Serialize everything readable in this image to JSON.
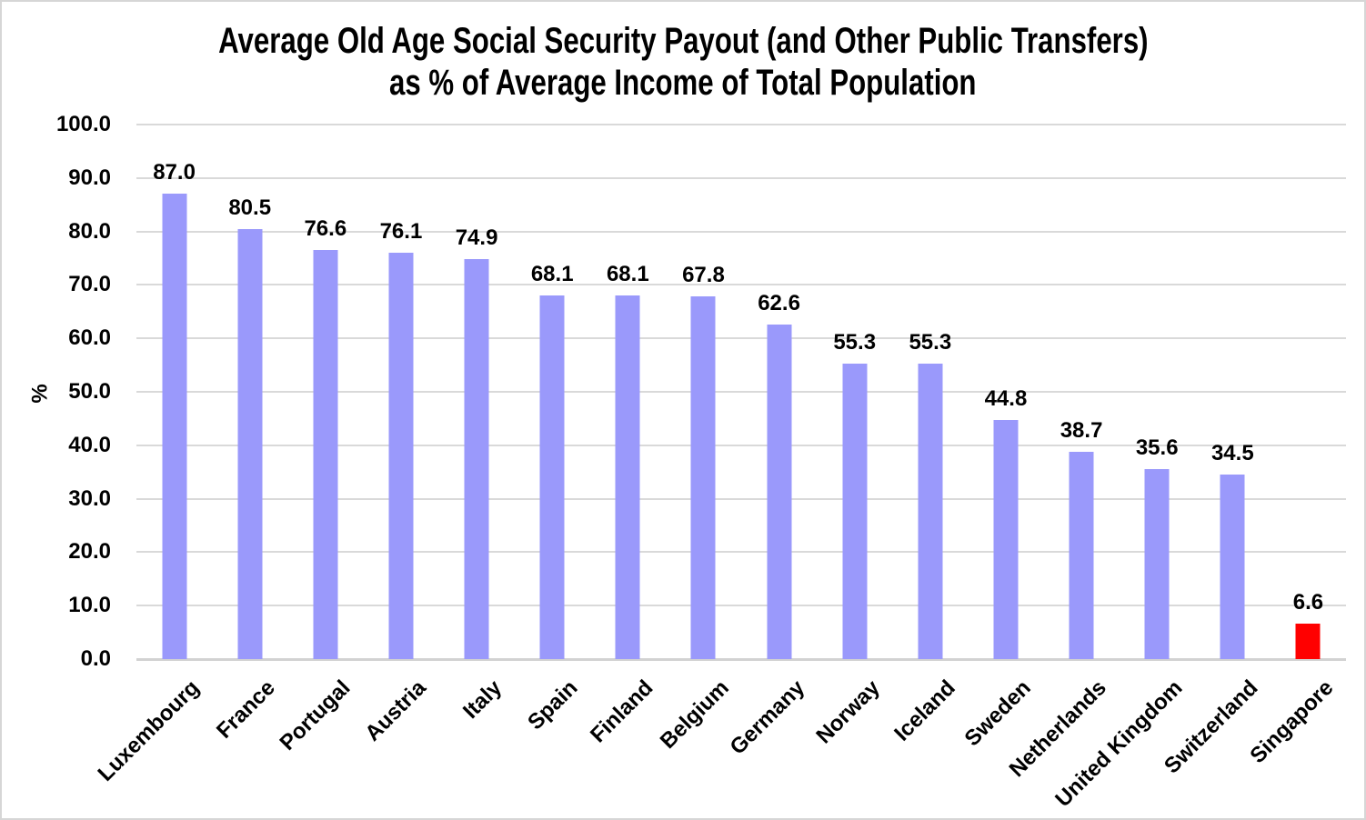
{
  "title": {
    "line1": "Average Old Age Social Security Payout (and Other Public Transfers)",
    "line2": "as % of Average Income of Total Population"
  },
  "y_axis": {
    "label": "%",
    "min": 0,
    "max": 100,
    "step": 10,
    "ticks": [
      "100.0",
      "90.0",
      "80.0",
      "70.0",
      "60.0",
      "50.0",
      "40.0",
      "30.0",
      "20.0",
      "10.0",
      "0.0"
    ]
  },
  "colors": {
    "bar_default": "#9a99fb",
    "bar_highlight": "#ff0000",
    "gridline": "#d9d9d9",
    "axis_line": "#d2d2d2",
    "text": "#000000",
    "background": "#ffffff",
    "border": "#d6d6d6"
  },
  "chart_data": {
    "type": "bar",
    "title": "Average Old Age Social Security Payout (and Other Public Transfers) as % of Average Income of Total Population",
    "categories": [
      "Luxembourg",
      "France",
      "Portugal",
      "Austria",
      "Italy",
      "Spain",
      "Finland",
      "Belgium",
      "Germany",
      "Norway",
      "Iceland",
      "Sweden",
      "Netherlands",
      "United Kingdom",
      "Switzerland",
      "Singapore"
    ],
    "values": [
      87.0,
      80.5,
      76.6,
      76.1,
      74.9,
      68.1,
      68.1,
      67.8,
      62.6,
      55.3,
      55.3,
      44.8,
      38.7,
      35.6,
      34.5,
      6.6
    ],
    "value_labels": [
      "87.0",
      "80.5",
      "76.6",
      "76.1",
      "74.9",
      "68.1",
      "68.1",
      "67.8",
      "62.6",
      "55.3",
      "55.3",
      "44.8",
      "38.7",
      "35.6",
      "34.5",
      "6.6"
    ],
    "xlabel": "",
    "ylabel": "%",
    "ylim": [
      0,
      100
    ],
    "grid": true,
    "legend": false,
    "highlight_index": 15
  }
}
